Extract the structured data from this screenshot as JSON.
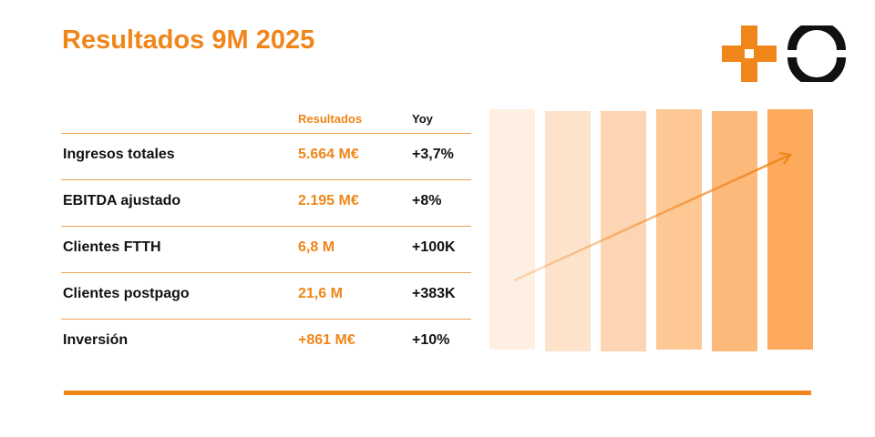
{
  "title": "Resultados 9M 2025",
  "table": {
    "headers": {
      "results": "Resultados",
      "yoy": "Yoy"
    },
    "rows": [
      {
        "label": "Ingresos totales",
        "value": "5.664 M€",
        "yoy": "+3,7%"
      },
      {
        "label": "EBITDA ajustado",
        "value": "2.195 M€",
        "yoy": "+8%"
      },
      {
        "label": "Clientes FTTH",
        "value": "6,8 M",
        "yoy": "+100K"
      },
      {
        "label": "Clientes postpago",
        "value": "21,6 M",
        "yoy": "+383K"
      },
      {
        "label": "Inversión",
        "value": "+861 M€",
        "yoy": "+10%"
      }
    ]
  },
  "colors": {
    "accent": "#f08519",
    "bars": [
      "#fdf0e3",
      "#fde3cc",
      "#fdd5b4",
      "#fdc894",
      "#fdb97a",
      "#fdaa5c"
    ]
  }
}
